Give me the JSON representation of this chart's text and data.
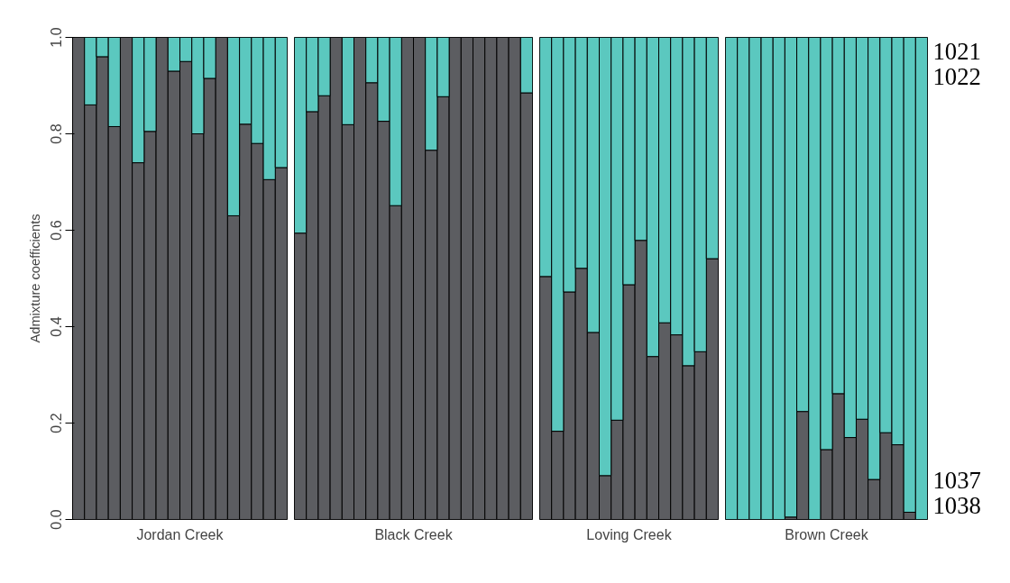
{
  "chart_data": [
    {
      "type": "bar",
      "stacked": true,
      "xlabel": "Jordan Creek",
      "ylabel": "Admixture coefficients",
      "categories": [
        null,
        null,
        null,
        null,
        null,
        null,
        null,
        null,
        null,
        null,
        null,
        null,
        null,
        null,
        null,
        null,
        null,
        null
      ],
      "ylim": [
        0,
        1
      ],
      "yticks": [
        {
          "value": 0,
          "label": "0.0"
        },
        0.2,
        0.4,
        0.6,
        0.8,
        {
          "value": 1,
          "label": "1.0"
        }
      ],
      "tick_labels": "y",
      "series": [
        {
          "color": "#5c5d61",
          "values": [
            1.0,
            0.86,
            0.96,
            0.815,
            1.0,
            0.74,
            0.805,
            1.0,
            0.93,
            0.95,
            0.8,
            0.915,
            1.0,
            0.63,
            0.82,
            0.78,
            0.705,
            0.73
          ]
        },
        {
          "color": "#5bc8bf",
          "values": [
            0.0,
            0.14,
            0.04,
            0.185,
            0.0,
            0.26,
            0.195,
            0.0,
            0.07,
            0.05,
            0.2,
            0.085,
            0.0,
            0.37,
            0.18,
            0.22,
            0.295,
            0.27
          ]
        }
      ]
    },
    {
      "type": "bar",
      "stacked": true,
      "xlabel": "Black Creek",
      "categories": [
        null,
        null,
        null,
        null,
        null,
        null,
        null,
        null,
        null,
        null,
        null,
        null,
        null,
        null,
        null,
        null,
        null,
        null,
        null,
        null
      ],
      "ylim": [
        0,
        1
      ],
      "tick_labels": false,
      "series": [
        {
          "color": "#5c5d61",
          "values": [
            0.594,
            0.846,
            0.879,
            1.0,
            0.819,
            1.0,
            0.906,
            0.826,
            0.651,
            1.0,
            1.0,
            0.766,
            0.877,
            1.0,
            1.0,
            1.0,
            1.0,
            1.0,
            1.0,
            0.885
          ]
        },
        {
          "color": "#5bc8bf",
          "values": [
            0.406,
            0.154,
            0.121,
            0.0,
            0.181,
            0.0,
            0.094,
            0.174,
            0.349,
            0.0,
            0.0,
            0.234,
            0.123,
            0.0,
            0.0,
            0.0,
            0.0,
            0.0,
            0.0,
            0.115
          ]
        }
      ]
    },
    {
      "type": "bar",
      "stacked": true,
      "xlabel": "Loving Creek",
      "categories": [
        null,
        null,
        null,
        null,
        null,
        null,
        null,
        null,
        null,
        null,
        null,
        null,
        null,
        null,
        null
      ],
      "ylim": [
        0,
        1
      ],
      "tick_labels": false,
      "series": [
        {
          "color": "#5c5d61",
          "values": [
            0.504,
            0.183,
            0.472,
            0.521,
            0.388,
            0.091,
            0.206,
            0.487,
            0.579,
            0.338,
            0.408,
            0.383,
            0.319,
            0.348,
            0.541
          ]
        },
        {
          "color": "#5bc8bf",
          "values": [
            0.496,
            0.817,
            0.528,
            0.479,
            0.612,
            0.909,
            0.794,
            0.513,
            0.421,
            0.662,
            0.592,
            0.617,
            0.681,
            0.652,
            0.459
          ]
        }
      ]
    },
    {
      "type": "bar",
      "stacked": true,
      "xlabel": "Brown Creek",
      "categories": [
        null,
        null,
        null,
        null,
        null,
        null,
        null,
        null,
        null,
        null,
        null,
        null,
        null,
        null,
        null,
        null,
        null
      ],
      "ylim": [
        0,
        1
      ],
      "tick_labels": false,
      "annotations": [
        "1021",
        "1022",
        "1037",
        "1038"
      ],
      "series": [
        {
          "color": "#5c5d61",
          "values": [
            0.0,
            0.0,
            0.0,
            0.0,
            0.0,
            0.005,
            0.224,
            0.0,
            0.145,
            0.261,
            0.17,
            0.208,
            0.083,
            0.18,
            0.155,
            0.015,
            0.0
          ]
        },
        {
          "color": "#5bc8bf",
          "values": [
            1.0,
            1.0,
            1.0,
            1.0,
            1.0,
            0.995,
            0.776,
            1.0,
            0.855,
            0.739,
            0.83,
            0.792,
            0.917,
            0.82,
            0.845,
            0.985,
            1.0
          ]
        }
      ]
    }
  ]
}
